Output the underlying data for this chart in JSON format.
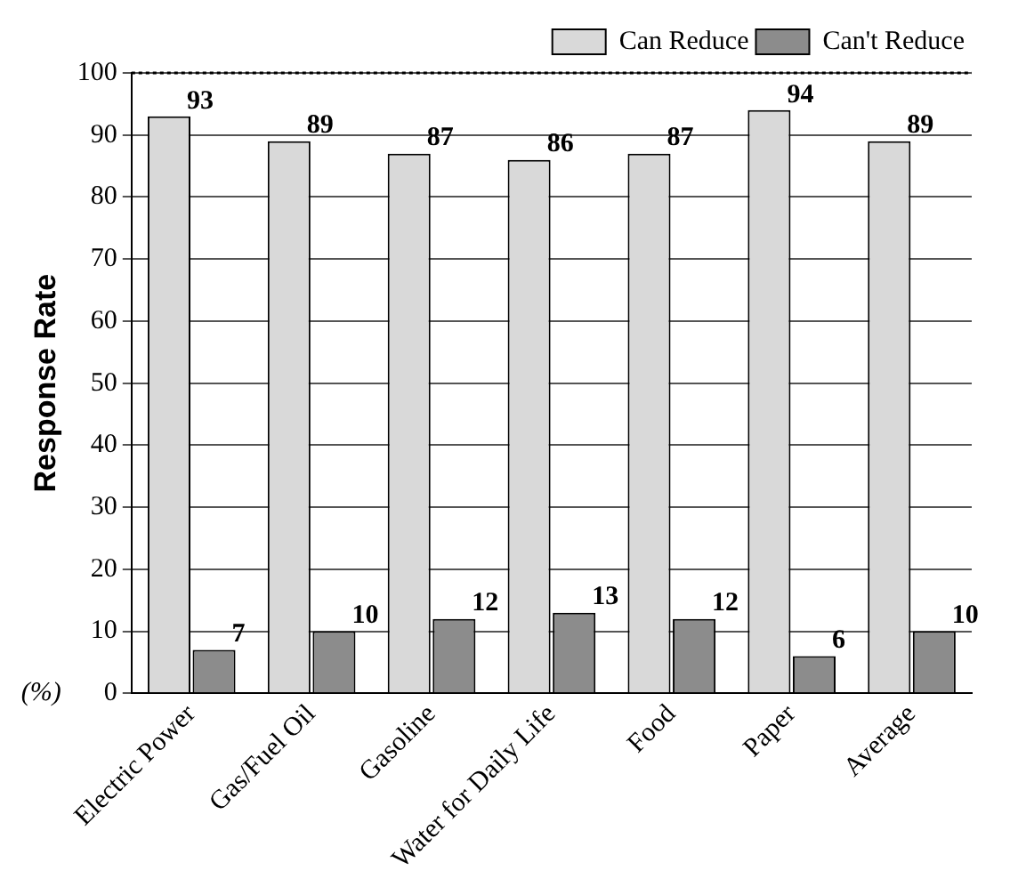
{
  "chart_data": {
    "type": "bar",
    "ylabel": "Response Rate",
    "categories": [
      "Electric Power",
      "Gas/Fuel Oil",
      "Gasoline",
      "Water for Daily Life",
      "Food",
      "Paper",
      "Average"
    ],
    "series": [
      {
        "name": "Can Reduce",
        "color": "#d9d9d9",
        "values": [
          93,
          89,
          87,
          86,
          87,
          94,
          89
        ]
      },
      {
        "name": "Can't Reduce",
        "color": "#8c8c8c",
        "values": [
          7,
          10,
          12,
          13,
          12,
          6,
          10
        ]
      }
    ],
    "ylim": [
      0,
      100
    ],
    "yticks": [
      0,
      10,
      20,
      30,
      40,
      50,
      60,
      70,
      80,
      90,
      100
    ],
    "grid": "y",
    "legend": "top right",
    "data_labels": true,
    "annotations": [
      "(%)"
    ]
  }
}
